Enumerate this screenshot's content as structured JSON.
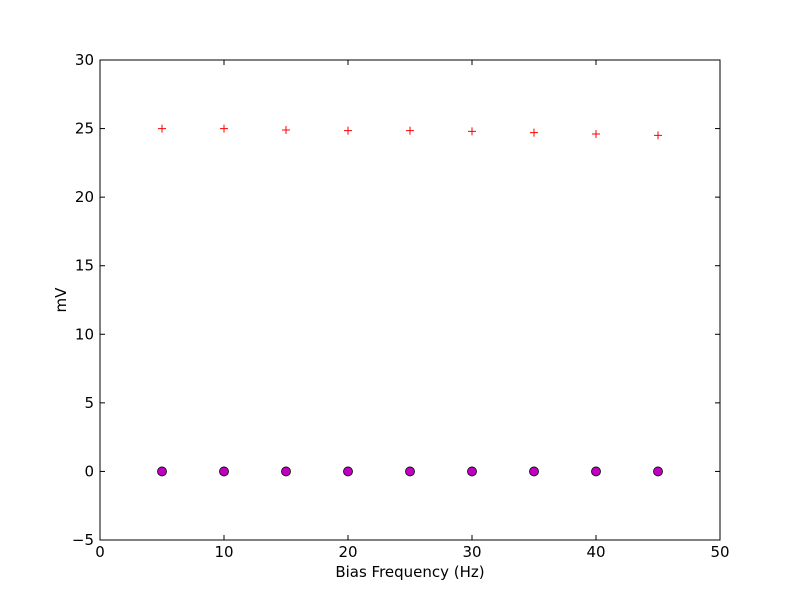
{
  "chart_data": {
    "type": "scatter",
    "title": "",
    "xlabel": "Bias Frequency (Hz)",
    "ylabel": "mV",
    "xlim": [
      0,
      50
    ],
    "ylim": [
      -5,
      30
    ],
    "xticks": [
      0,
      10,
      20,
      30,
      40,
      50
    ],
    "yticks": [
      -5,
      0,
      5,
      10,
      15,
      20,
      25,
      30
    ],
    "xtick_labels": [
      "0",
      "10",
      "20",
      "30",
      "40",
      "50"
    ],
    "ytick_labels": [
      "−5",
      "0",
      "5",
      "10",
      "15",
      "20",
      "25",
      "30"
    ],
    "grid": false,
    "legend": "none",
    "series": [
      {
        "marker": "plus",
        "color": "#ff0000",
        "x": [
          5,
          10,
          15,
          20,
          25,
          30,
          35,
          40,
          45
        ],
        "y": [
          25.0,
          25.0,
          24.9,
          24.85,
          24.85,
          24.8,
          24.7,
          24.6,
          24.5
        ]
      },
      {
        "marker": "circle",
        "color": "#bf00bf",
        "x": [
          5,
          10,
          15,
          20,
          25,
          30,
          35,
          40,
          45
        ],
        "y": [
          0,
          0,
          0,
          0,
          0,
          0,
          0,
          0,
          0
        ]
      }
    ]
  }
}
